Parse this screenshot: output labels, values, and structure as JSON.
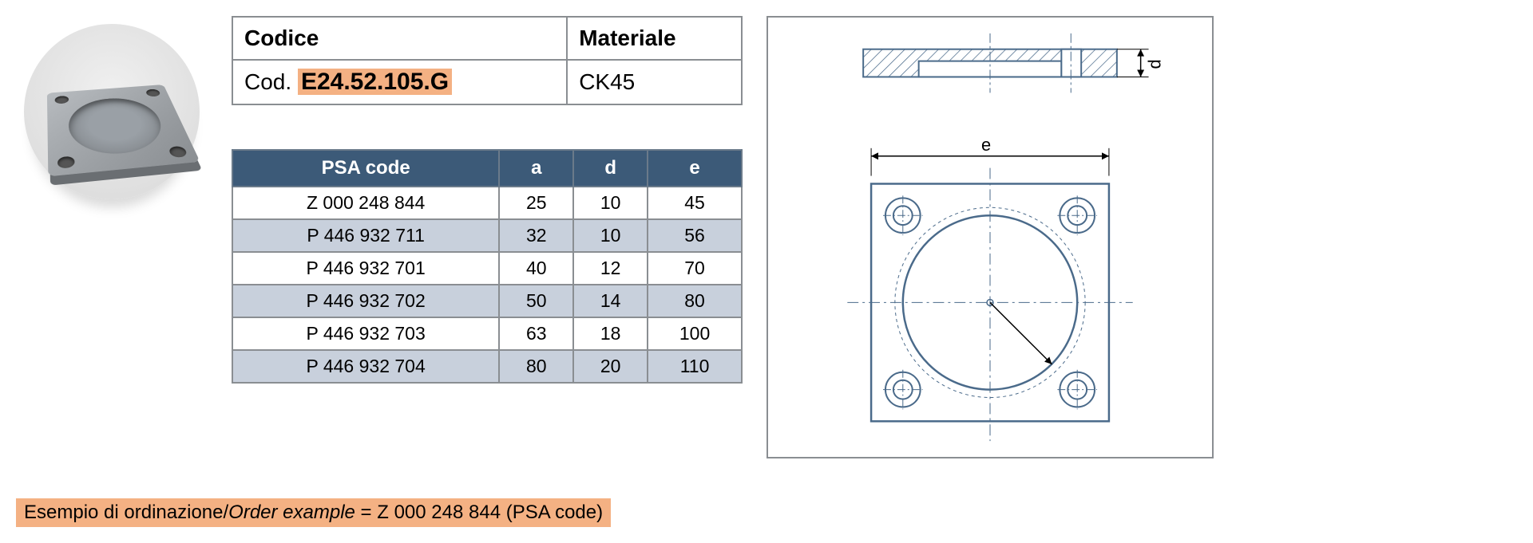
{
  "code_table": {
    "header_code": "Codice",
    "header_material": "Materiale",
    "code_prefix": "Cod.",
    "code_value": "E24.52.105.G",
    "material_value": "CK45",
    "highlight_color": "#f4b183",
    "border_color": "#8a8e92"
  },
  "data_table": {
    "header_bg": "#3c5a78",
    "header_fg": "#ffffff",
    "row_odd_bg": "#ffffff",
    "row_even_bg": "#c8d0dc",
    "columns": [
      "PSA code",
      "a",
      "d",
      "e"
    ],
    "rows": [
      [
        "Z 000 248 844",
        "25",
        "10",
        "45"
      ],
      [
        "P 446 932 711",
        "32",
        "10",
        "56"
      ],
      [
        "P 446 932 701",
        "40",
        "12",
        "70"
      ],
      [
        "P 446 932 702",
        "50",
        "14",
        "80"
      ],
      [
        "P 446 932 703",
        "63",
        "18",
        "100"
      ],
      [
        "P 446 932 704",
        "80",
        "20",
        "110"
      ]
    ]
  },
  "footer": {
    "text_it": "Esempio di ordinazione/",
    "text_en": "Order example",
    "text_eq": " = Z 000 248 844 (PSA code)",
    "bg": "#f4b183"
  },
  "drawing": {
    "label_d": "d",
    "label_e": "e",
    "line_color": "#4a6a8a",
    "hatch_color": "#4a6a8a"
  }
}
